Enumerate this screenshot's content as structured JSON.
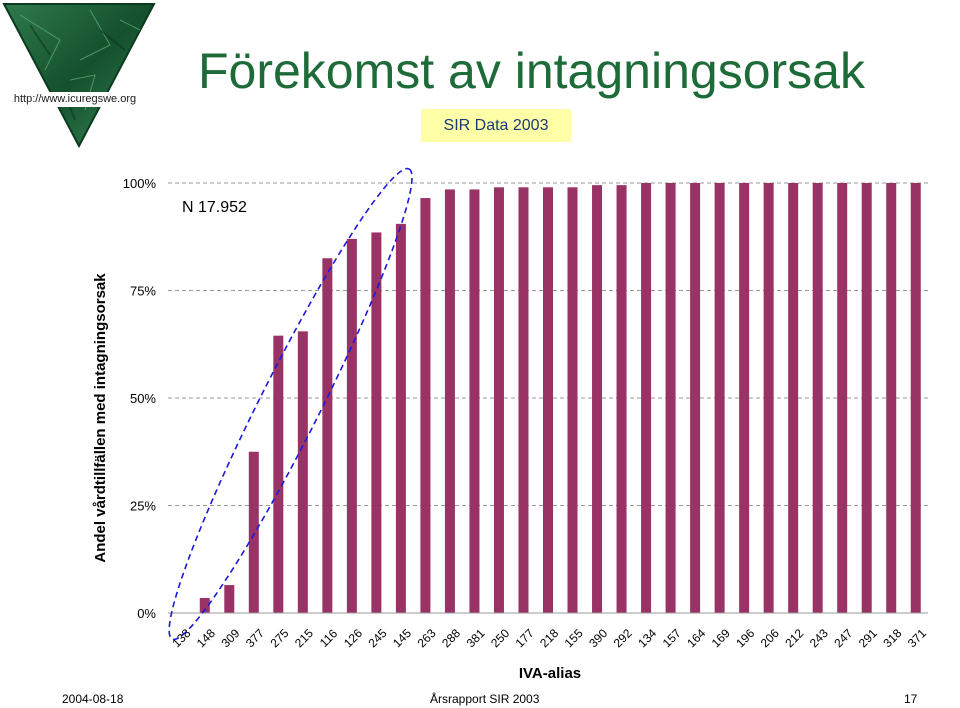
{
  "header": {
    "title": "Förekomst av intagningsorsak",
    "subtitle": "SIR Data 2003",
    "logo_url": "http://www.icuregswe.org"
  },
  "footer": {
    "date": "2004-08-18",
    "center": "Årsrapport SIR 2003",
    "page": "17"
  },
  "colors": {
    "bar": "#993366",
    "title": "#1d6b38",
    "badge_bg": "#ffffa8",
    "badge_text": "#1a3a7a",
    "highlight": "#1a1ad8",
    "grid": "#999999"
  },
  "chart_data": {
    "type": "bar",
    "xlabel": "IVA-alias",
    "ylabel": "Andel vårdtillfällen med intagningsorsak",
    "annotation": "N 17.952",
    "ylim": [
      0,
      1
    ],
    "y_ticks": [
      {
        "value": 0,
        "label": "0%"
      },
      {
        "value": 0.25,
        "label": "25%"
      },
      {
        "value": 0.5,
        "label": "50%"
      },
      {
        "value": 0.75,
        "label": "75%"
      },
      {
        "value": 1,
        "label": "100%"
      }
    ],
    "grid": "horizontal dashed",
    "highlight": "dashed ellipse around bars 138–145",
    "categories": [
      "138",
      "148",
      "309",
      "377",
      "275",
      "215",
      "116",
      "126",
      "245",
      "145",
      "263",
      "288",
      "381",
      "250",
      "177",
      "218",
      "155",
      "390",
      "292",
      "134",
      "157",
      "164",
      "169",
      "196",
      "206",
      "212",
      "243",
      "247",
      "291",
      "318",
      "371"
    ],
    "values": [
      0,
      0.035,
      0.065,
      0.375,
      0.645,
      0.655,
      0.825,
      0.87,
      0.885,
      0.905,
      0.965,
      0.985,
      0.985,
      0.99,
      0.99,
      0.99,
      0.99,
      0.995,
      0.995,
      1,
      1,
      1,
      1,
      1,
      1,
      1,
      1,
      1,
      1,
      1,
      1
    ]
  }
}
